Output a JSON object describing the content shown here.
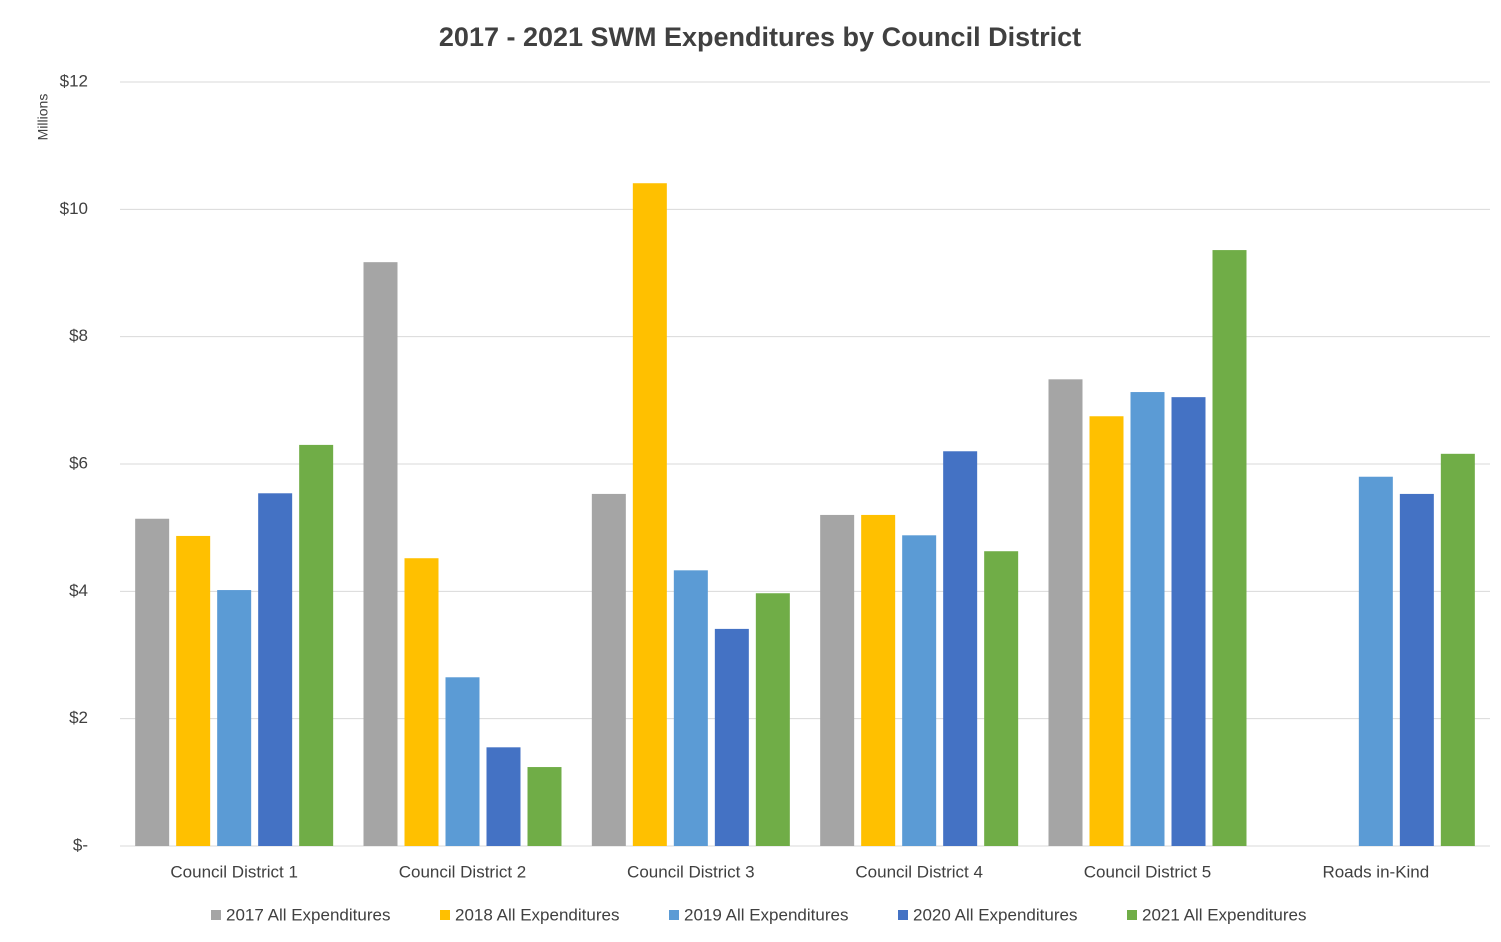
{
  "chart_data": {
    "type": "bar",
    "title": "2017 - 2021 SWM Expenditures by Council District",
    "y_axis_label": "Millions",
    "categories": [
      "Council District 1",
      "Council District 2",
      "Council District 3",
      "Council District 4",
      "Council District 5",
      "Roads in-Kind"
    ],
    "series": [
      {
        "name": "2017 All Expenditures",
        "color": "#a5a5a5",
        "values": [
          5.14,
          9.17,
          5.53,
          5.2,
          7.33,
          null
        ]
      },
      {
        "name": "2018 All Expenditures",
        "color": "#ffc000",
        "values": [
          4.87,
          4.52,
          10.41,
          5.2,
          6.75,
          null
        ]
      },
      {
        "name": "2019 All Expenditures",
        "color": "#5b9bd5",
        "values": [
          4.02,
          2.65,
          4.33,
          4.88,
          7.13,
          5.8
        ]
      },
      {
        "name": "2020 All Expenditures",
        "color": "#4472c4",
        "values": [
          5.54,
          1.55,
          3.41,
          6.2,
          7.05,
          5.53
        ]
      },
      {
        "name": "2021 All Expenditures",
        "color": "#70ad47",
        "values": [
          6.3,
          1.24,
          3.97,
          4.63,
          9.36,
          6.16
        ]
      }
    ],
    "ylim": [
      0,
      12
    ],
    "yticks": [
      {
        "value": 0,
        "label": "$-"
      },
      {
        "value": 2,
        "label": "$2"
      },
      {
        "value": 4,
        "label": "$4"
      },
      {
        "value": 6,
        "label": "$6"
      },
      {
        "value": 8,
        "label": "$8"
      },
      {
        "value": 10,
        "label": "$10"
      },
      {
        "value": 12,
        "label": "$12"
      }
    ],
    "grid": true,
    "legend": "bottom"
  }
}
